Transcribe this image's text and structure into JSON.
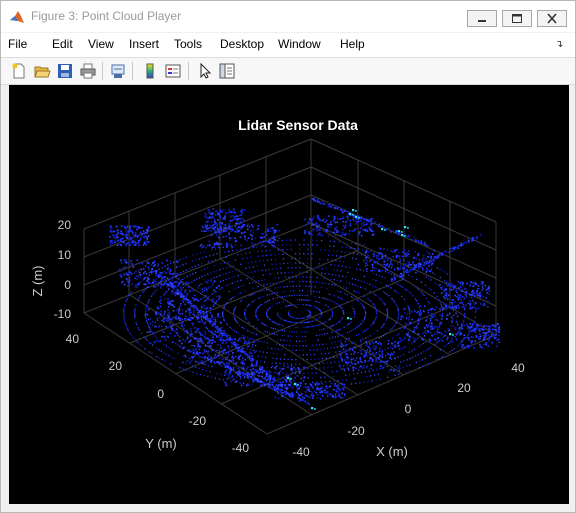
{
  "window": {
    "title": "Figure 3: Point Cloud Player"
  },
  "menu": [
    "File",
    "Edit",
    "View",
    "Insert",
    "Tools",
    "Desktop",
    "Window",
    "Help"
  ],
  "toolbar": [
    "new-figure-icon",
    "open-folder-icon",
    "save-icon",
    "print-icon",
    "link-icon",
    "colorbar-icon",
    "legend-icon",
    "pointer-icon",
    "property-inspector-icon"
  ],
  "plot": {
    "title": "Lidar Sensor Data",
    "xlabel": "X (m)",
    "ylabel": "Y (m)",
    "zlabel": "Z (m)",
    "z_ticks": [
      "20",
      "10",
      "0",
      "-10"
    ],
    "y_ticks": [
      "40",
      "20",
      "0",
      "-20",
      "-40"
    ],
    "x_ticks": [
      "-40",
      "-20",
      "0",
      "20",
      "40"
    ],
    "background": "#000000",
    "point_color": "#1a2cff"
  }
}
